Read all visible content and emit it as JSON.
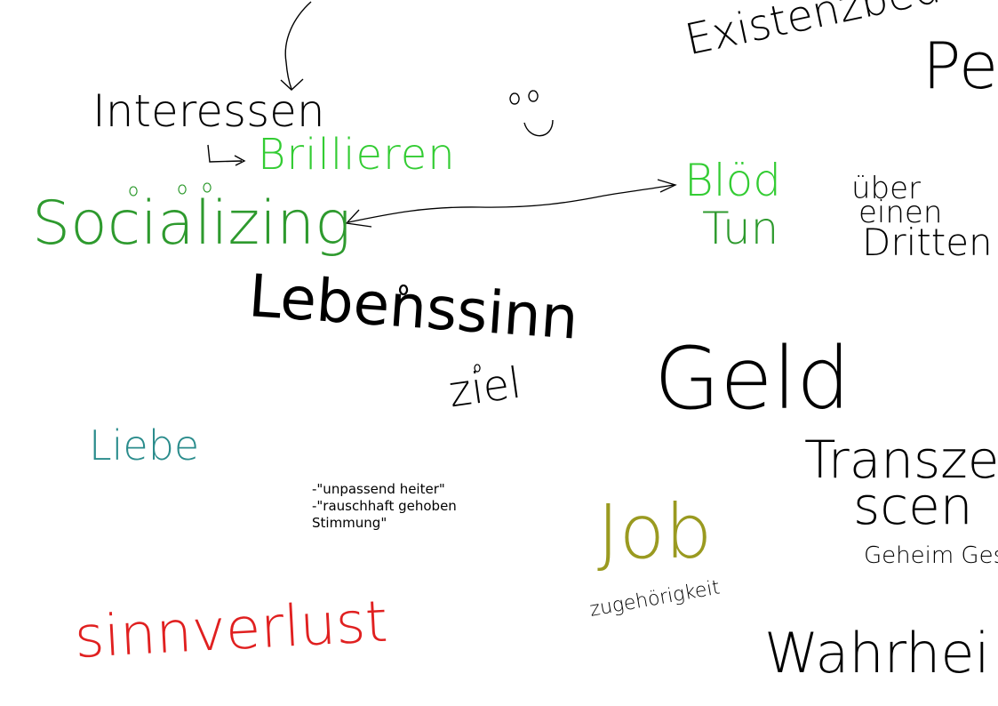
{
  "colors": {
    "black": "#000000",
    "light_green": "#33cc33",
    "green": "#2e9a2e",
    "teal": "#2a8c8c",
    "olive": "#9a9a20",
    "red": "#e02020"
  },
  "handwriting": {
    "existenz": "Existenzbedür",
    "pe": "Pe",
    "interessen": "Interessen",
    "brillieren": "Brillieren",
    "socializing": "Socializing",
    "bloed": "Blöd",
    "tun": "Tun",
    "ueber": "über",
    "einen": "einen",
    "dritten": "Dritten",
    "lebenssinn": "Lebenssinn",
    "ziel": "ziel",
    "geld": "Geld",
    "liebe": "Liebe",
    "transzendenz_1": "Transze",
    "transzendenz_2": "scen",
    "geheim": "Geheim Ges",
    "job": "Job",
    "zugehoerigkeit": "zugehörigkeit",
    "sinnverlust": "sinnverlust",
    "wahrheit": "Wahrhei"
  },
  "typed_note": {
    "line1": "-\"unpassend heiter\"",
    "line2": "-\"rauschhaft gehoben",
    "line3": "Stimmung\""
  }
}
